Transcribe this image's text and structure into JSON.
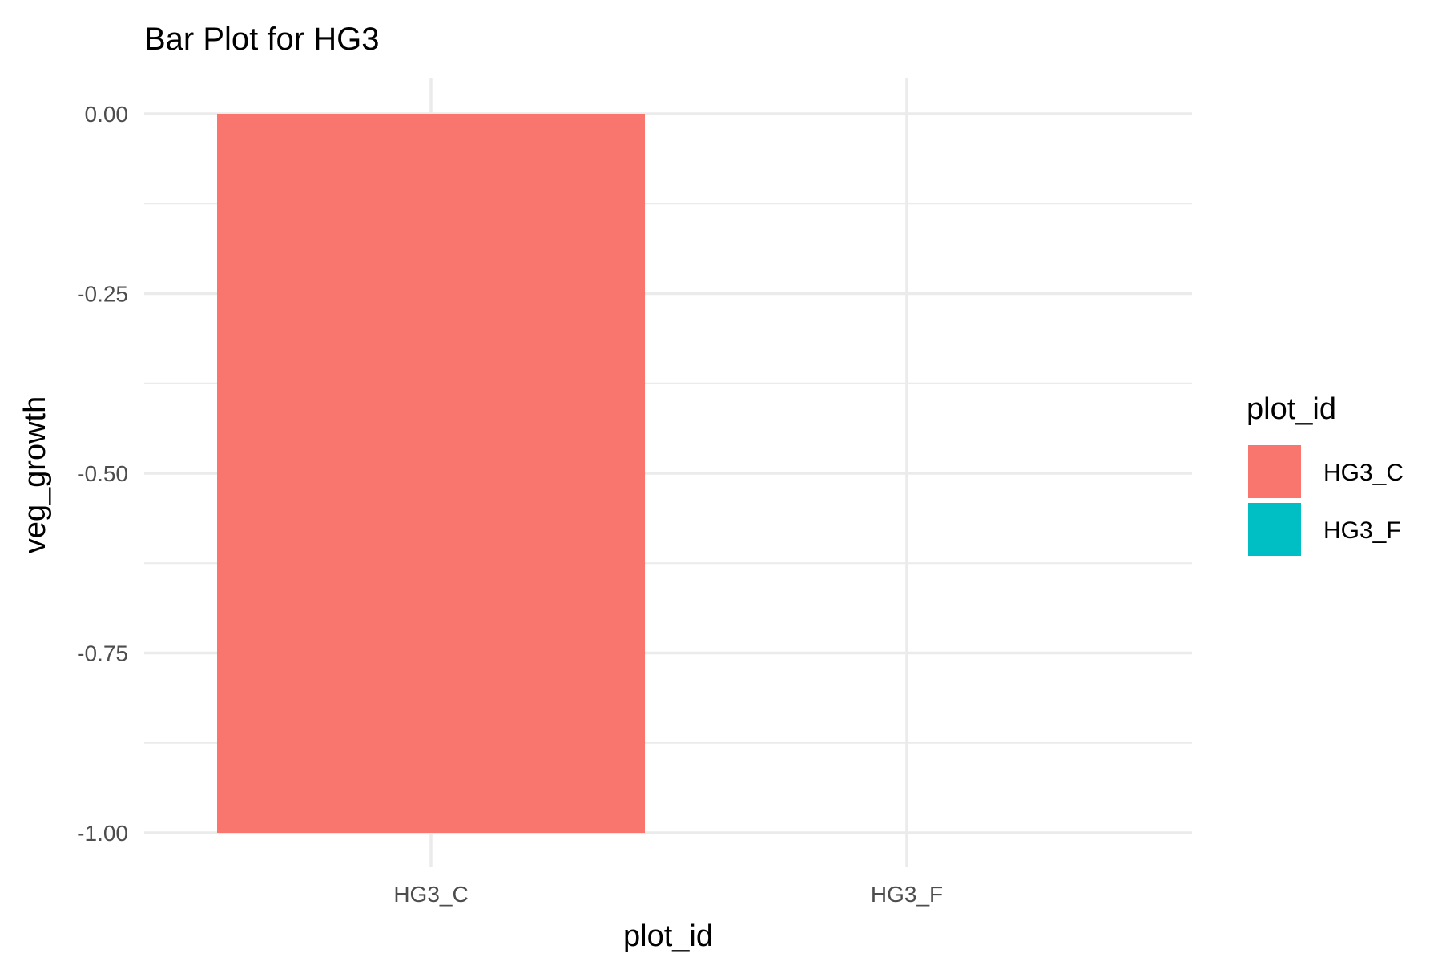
{
  "chart_data": {
    "type": "bar",
    "title": "Bar Plot for HG3",
    "xlabel": "plot_id",
    "ylabel": "veg_growth",
    "categories": [
      "HG3_C",
      "HG3_F"
    ],
    "values": [
      -1.0,
      0.0
    ],
    "colors": [
      "#F8766D",
      "#00BFC4"
    ],
    "ylim": [
      -1.0,
      0.0
    ],
    "yticks": [
      0.0,
      -0.25,
      -0.5,
      -0.75,
      -1.0
    ],
    "ytick_labels": [
      "0.00",
      "-0.25",
      "-0.50",
      "-0.75",
      "-1.00"
    ],
    "grid": true,
    "legend": {
      "title": "plot_id",
      "position": "right",
      "entries": [
        "HG3_C",
        "HG3_F"
      ]
    }
  }
}
